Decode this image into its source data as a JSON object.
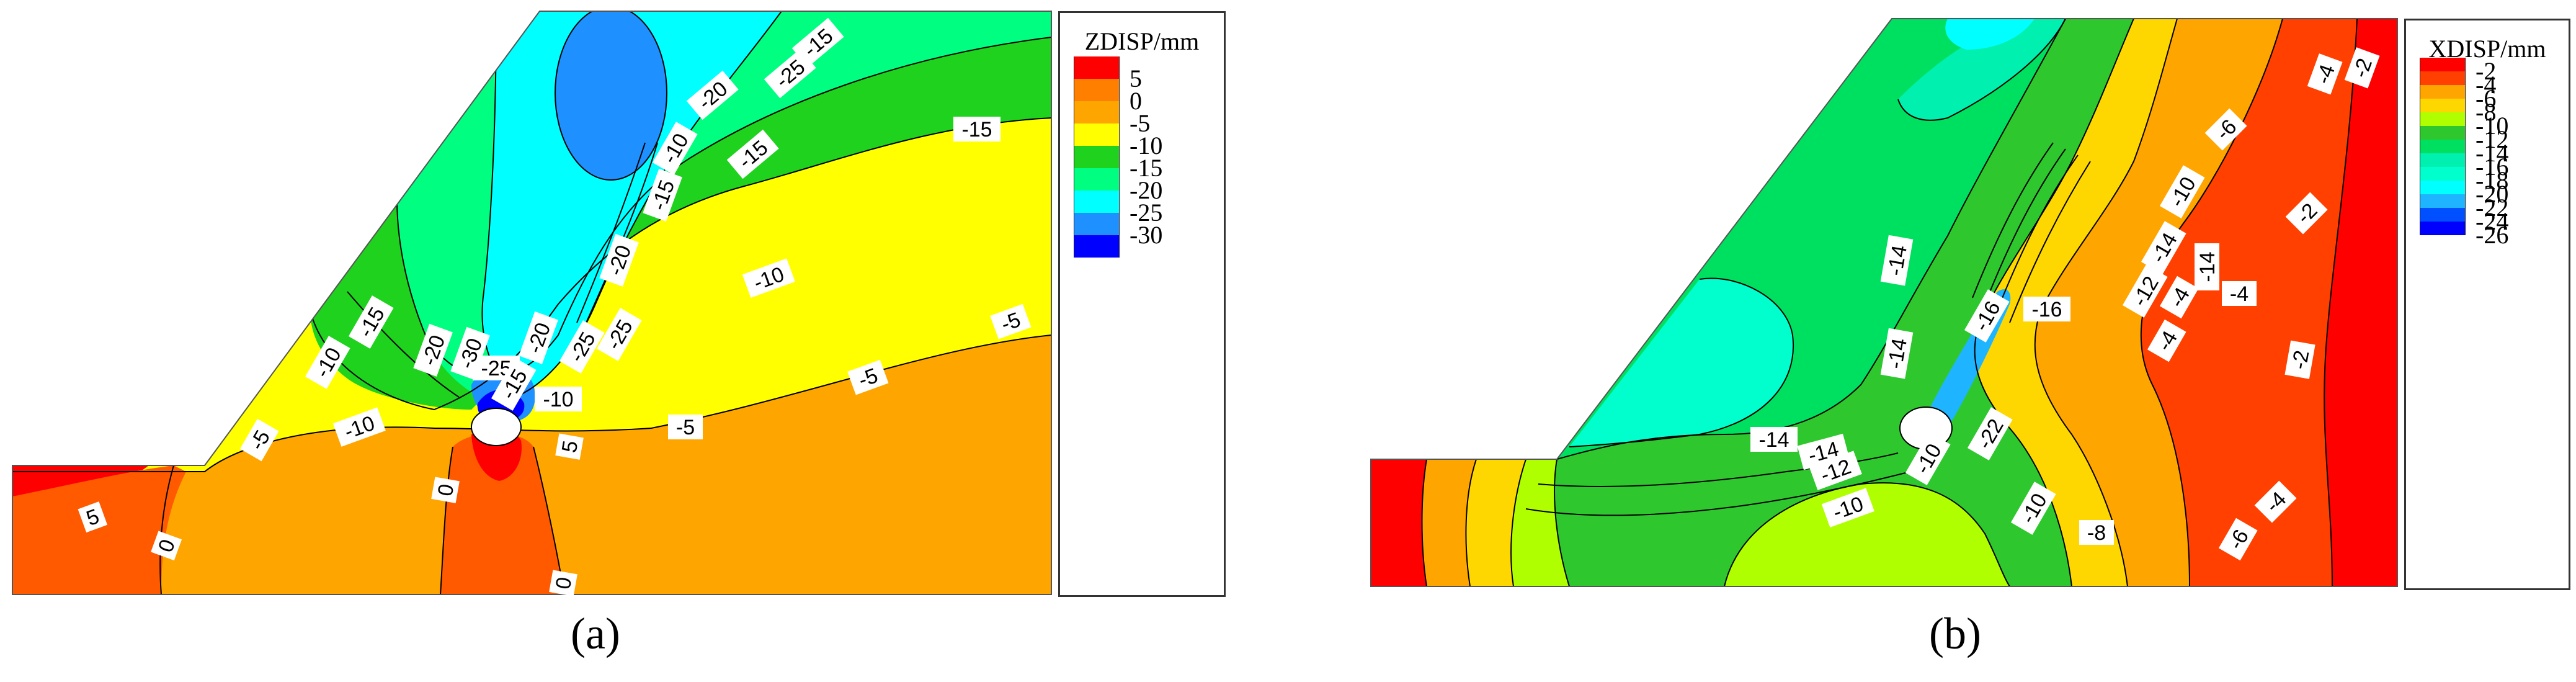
{
  "chart_data": [
    {
      "type": "heatmap",
      "caption": "(a)",
      "legend_title": "ZDISP/mm",
      "legend_levels": [
        "5",
        "0",
        "-5",
        "-10",
        "-15",
        "-20",
        "-25",
        "-30"
      ],
      "colors": [
        "#ff0000",
        "#ff7f00",
        "#ffa500",
        "#ffff00",
        "#1ed21e",
        "#00ff80",
        "#00ffff",
        "#1e90ff",
        "#0000ff"
      ],
      "contour_labels": [
        "5",
        "0",
        "-5",
        "-10",
        "-15",
        "-20",
        "-25",
        "-30",
        "-25",
        "-20",
        "-15",
        "-10",
        "-15",
        "-20",
        "-25",
        "-15",
        "-15",
        "-10",
        "-25",
        "-20",
        "-15",
        "-10",
        "-5",
        "-5",
        "-5",
        "-10",
        "5",
        "0",
        "0"
      ]
    },
    {
      "type": "heatmap",
      "caption": "(b)",
      "legend_title": "XDISP/mm",
      "legend_levels": [
        "-2",
        "-4",
        "-6",
        "-8",
        "-10",
        "-12",
        "-14",
        "-16",
        "-18",
        "-20",
        "-22",
        "-24",
        "-26"
      ],
      "colors": [
        "#ff0000",
        "#ff4000",
        "#ffa500",
        "#ffd700",
        "#b0ff00",
        "#2ec82e",
        "#00e060",
        "#00f0b0",
        "#00ffcc",
        "#00ffff",
        "#1eb4ff",
        "#0050ff",
        "#0000ff"
      ],
      "contour_labels": [
        "-14",
        "-14",
        "-14",
        "-14",
        "-16",
        "-16",
        "-22",
        "-12",
        "-10",
        "-14",
        "-4",
        "-4",
        "-6",
        "-4",
        "-2",
        "-2",
        "-2",
        "-4",
        "-4",
        "-6",
        "-8",
        "-10",
        "-10",
        "-10",
        "-12",
        "-14"
      ]
    }
  ],
  "captions": {
    "a": "(a)",
    "b": "(b)"
  }
}
